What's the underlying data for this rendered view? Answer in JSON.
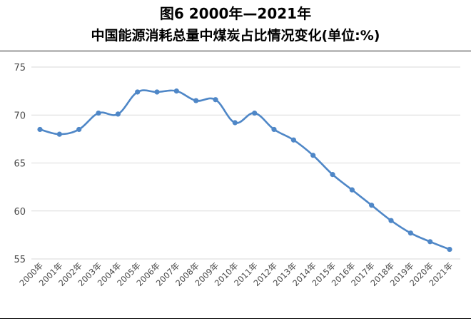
{
  "header": {
    "title_line1": "图6 2000年—2021年",
    "title_line2": "中国能源消耗总量中煤炭占比情况变化(单位:%)"
  },
  "chart_data": {
    "type": "line",
    "title": "图6 2000年—2021年 中国能源消耗总量中煤炭占比情况变化(单位:%)",
    "xlabel": "",
    "ylabel": "",
    "categories": [
      "2000年",
      "2001年",
      "2002年",
      "2003年",
      "2004年",
      "2005年",
      "2006年",
      "2007年",
      "2008年",
      "2009年",
      "2010年",
      "2011年",
      "2012年",
      "2013年",
      "2014年",
      "2015年",
      "2016年",
      "2017年",
      "2018年",
      "2019年",
      "2020年",
      "2021年"
    ],
    "series": [
      {
        "name": "",
        "values": [
          68.5,
          68.0,
          68.5,
          70.2,
          70.1,
          72.4,
          72.4,
          72.5,
          71.5,
          71.6,
          69.2,
          70.2,
          68.5,
          67.4,
          65.8,
          63.8,
          62.2,
          60.6,
          59.0,
          57.7,
          56.8,
          56.0
        ]
      }
    ],
    "yticks": [
      55,
      60,
      65,
      70,
      75
    ],
    "ylim": [
      55,
      75
    ],
    "grid": true,
    "legend": "none",
    "line_color": "#4f87c7",
    "grid_color": "#d9d9d9"
  }
}
